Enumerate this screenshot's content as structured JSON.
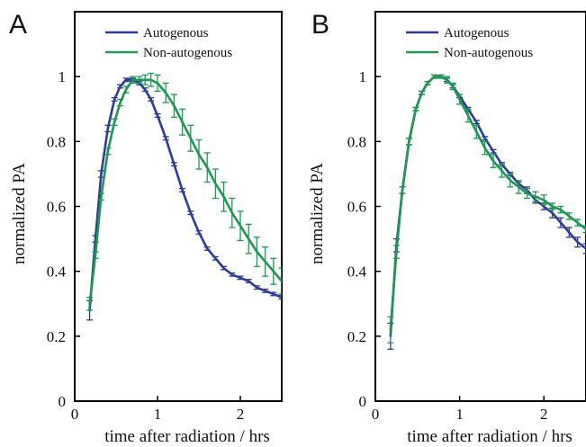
{
  "colors": {
    "autogenous": "#2b3c9b",
    "non_autogenous": "#1a9a50",
    "axis": "#000000"
  },
  "chart_data": [
    {
      "type": "line",
      "panel_label": "A",
      "xlabel": "time after radiation / hrs",
      "ylabel": "normalized  PA",
      "xlim": [
        0,
        2.5
      ],
      "ylim": [
        0,
        1.2
      ],
      "xticks": [
        "0",
        "1",
        "2"
      ],
      "yticks": [
        "0",
        "0.2",
        "0.4",
        "0.6",
        "0.8",
        "1"
      ],
      "legend": "top-left",
      "series": [
        {
          "name": "Autogenous",
          "x": [
            0.18,
            0.25,
            0.32,
            0.4,
            0.48,
            0.55,
            0.62,
            0.7,
            0.78,
            0.85,
            0.92,
            1.0,
            1.1,
            1.2,
            1.3,
            1.4,
            1.5,
            1.6,
            1.7,
            1.8,
            1.9,
            2.0,
            2.1,
            2.2,
            2.3,
            2.4,
            2.5
          ],
          "y": [
            0.28,
            0.5,
            0.7,
            0.84,
            0.93,
            0.97,
            0.99,
            0.99,
            0.98,
            0.96,
            0.93,
            0.88,
            0.81,
            0.73,
            0.65,
            0.58,
            0.52,
            0.47,
            0.44,
            0.41,
            0.39,
            0.38,
            0.37,
            0.35,
            0.34,
            0.33,
            0.32
          ],
          "err": [
            0.03,
            0.01,
            0.01,
            0.01,
            0.005,
            0.005,
            0.005,
            0.005,
            0.005,
            0.005,
            0.005,
            0.005,
            0.005,
            0.005,
            0.005,
            0.005,
            0.005,
            0.005,
            0.005,
            0.005,
            0.005,
            0.005,
            0.005,
            0.005,
            0.005,
            0.005,
            0.005
          ]
        },
        {
          "name": "Non-autogenous",
          "x": [
            0.18,
            0.25,
            0.32,
            0.4,
            0.48,
            0.55,
            0.62,
            0.7,
            0.78,
            0.85,
            0.92,
            1.0,
            1.1,
            1.2,
            1.3,
            1.4,
            1.5,
            1.6,
            1.7,
            1.8,
            1.9,
            2.0,
            2.1,
            2.2,
            2.3,
            2.4,
            2.5
          ],
          "y": [
            0.3,
            0.45,
            0.63,
            0.77,
            0.86,
            0.92,
            0.96,
            0.99,
            0.99,
            0.99,
            0.99,
            0.98,
            0.95,
            0.91,
            0.86,
            0.81,
            0.76,
            0.72,
            0.67,
            0.63,
            0.58,
            0.54,
            0.5,
            0.46,
            0.43,
            0.4,
            0.37
          ],
          "err": [
            0.02,
            0.01,
            0.01,
            0.01,
            0.01,
            0.01,
            0.01,
            0.01,
            0.01,
            0.015,
            0.02,
            0.025,
            0.03,
            0.035,
            0.04,
            0.04,
            0.045,
            0.045,
            0.045,
            0.045,
            0.045,
            0.045,
            0.045,
            0.045,
            0.045,
            0.04,
            0.04
          ]
        }
      ]
    },
    {
      "type": "line",
      "panel_label": "B",
      "xlabel": "time after radiation / hrs",
      "ylabel": "normalized  PA",
      "xlim": [
        0,
        2.5
      ],
      "ylim": [
        0,
        1.2
      ],
      "xticks": [
        "0",
        "1",
        "2"
      ],
      "yticks": [
        "0",
        "0.2",
        "0.4",
        "0.6",
        "0.8",
        "1"
      ],
      "legend": "top-left",
      "series": [
        {
          "name": "Autogenous",
          "x": [
            0.18,
            0.25,
            0.32,
            0.4,
            0.48,
            0.55,
            0.62,
            0.7,
            0.78,
            0.85,
            0.92,
            1.0,
            1.1,
            1.2,
            1.3,
            1.4,
            1.5,
            1.6,
            1.7,
            1.8,
            1.9,
            2.0,
            2.1,
            2.2,
            2.3,
            2.4,
            2.5
          ],
          "y": [
            0.2,
            0.48,
            0.65,
            0.8,
            0.9,
            0.95,
            0.98,
            1.0,
            1.0,
            0.99,
            0.97,
            0.94,
            0.9,
            0.86,
            0.81,
            0.77,
            0.73,
            0.7,
            0.67,
            0.65,
            0.62,
            0.6,
            0.58,
            0.55,
            0.52,
            0.49,
            0.47
          ],
          "err": [
            0.04,
            0.02,
            0.01,
            0.01,
            0.005,
            0.005,
            0.005,
            0.005,
            0.005,
            0.005,
            0.005,
            0.005,
            0.005,
            0.005,
            0.005,
            0.005,
            0.005,
            0.005,
            0.005,
            0.01,
            0.01,
            0.01,
            0.015,
            0.015,
            0.015,
            0.015,
            0.015
          ]
        },
        {
          "name": "Non-autogenous",
          "x": [
            0.18,
            0.25,
            0.32,
            0.4,
            0.48,
            0.55,
            0.62,
            0.7,
            0.78,
            0.85,
            0.92,
            1.0,
            1.1,
            1.2,
            1.3,
            1.4,
            1.5,
            1.6,
            1.7,
            1.8,
            1.9,
            2.0,
            2.1,
            2.2,
            2.3,
            2.4,
            2.5
          ],
          "y": [
            0.22,
            0.46,
            0.65,
            0.8,
            0.9,
            0.95,
            0.98,
            1.0,
            1.0,
            0.99,
            0.97,
            0.93,
            0.88,
            0.83,
            0.78,
            0.74,
            0.71,
            0.68,
            0.66,
            0.64,
            0.63,
            0.62,
            0.6,
            0.59,
            0.57,
            0.55,
            0.53
          ],
          "err": [
            0.04,
            0.02,
            0.01,
            0.01,
            0.005,
            0.005,
            0.005,
            0.005,
            0.005,
            0.01,
            0.01,
            0.015,
            0.02,
            0.02,
            0.02,
            0.02,
            0.02,
            0.02,
            0.02,
            0.015,
            0.015,
            0.015,
            0.01,
            0.01,
            0.01,
            0.01,
            0.01
          ]
        }
      ]
    }
  ]
}
